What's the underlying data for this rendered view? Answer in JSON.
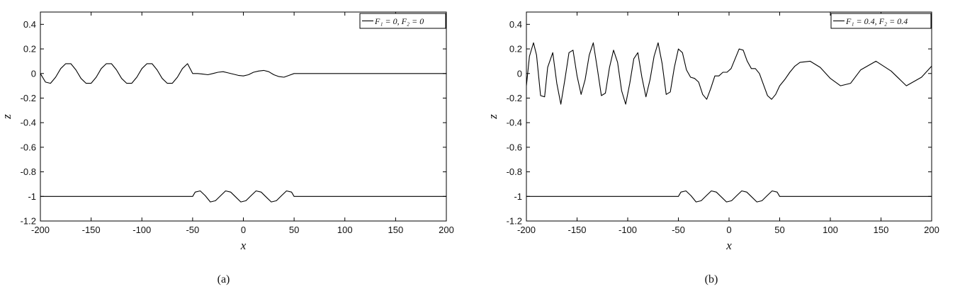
{
  "chart_data": [
    {
      "type": "line",
      "caption": "(a)",
      "xlabel": "x",
      "ylabel": "z",
      "xlim": [
        -200,
        200
      ],
      "ylim": [
        -1.2,
        0.5
      ],
      "xticks": [
        -200,
        -150,
        -100,
        -50,
        0,
        50,
        100,
        150,
        200
      ],
      "yticks": [
        -1.2,
        -1,
        -0.8,
        -0.6,
        -0.4,
        -0.2,
        0,
        0.2,
        0.4
      ],
      "grid": false,
      "legend": {
        "position": "top-right",
        "label": "F₁ = 0, F₂ = 0"
      },
      "series": [
        {
          "role": "free-surface",
          "x": [
            -200,
            -195,
            -190,
            -185,
            -180,
            -175,
            -170,
            -165,
            -160,
            -155,
            -150,
            -145,
            -140,
            -135,
            -130,
            -125,
            -120,
            -115,
            -110,
            -105,
            -100,
            -95,
            -90,
            -85,
            -80,
            -75,
            -70,
            -65,
            -60,
            -55,
            -50,
            -45,
            -40,
            -35,
            -30,
            -25,
            -20,
            -15,
            -10,
            -5,
            0,
            5,
            10,
            15,
            20,
            25,
            30,
            35,
            40,
            45,
            50,
            55,
            100,
            150,
            200
          ],
          "y": [
            0,
            -0.07,
            -0.08,
            -0.03,
            0.04,
            0.08,
            0.08,
            0.03,
            -0.04,
            -0.08,
            -0.08,
            -0.03,
            0.04,
            0.08,
            0.08,
            0.03,
            -0.04,
            -0.08,
            -0.08,
            -0.03,
            0.04,
            0.08,
            0.08,
            0.03,
            -0.04,
            -0.08,
            -0.08,
            -0.03,
            0.04,
            0.08,
            0,
            0,
            -0.005,
            -0.01,
            0,
            0.01,
            0.015,
            0.005,
            -0.005,
            -0.015,
            -0.02,
            -0.01,
            0.01,
            0.02,
            0.025,
            0.015,
            -0.01,
            -0.025,
            -0.03,
            -0.015,
            0,
            0,
            0,
            0,
            0
          ]
        },
        {
          "role": "bottom-topography",
          "x": [
            -200,
            -50,
            -47.5,
            -42.5,
            -37.5,
            -32.5,
            -27.5,
            -22.5,
            -17.5,
            -12.5,
            -7.5,
            -2.5,
            2.5,
            7.5,
            12.5,
            17.5,
            22.5,
            27.5,
            32.5,
            37.5,
            42.5,
            47.5,
            50,
            200
          ],
          "y": [
            -1,
            -1,
            -0.965,
            -0.955,
            -0.995,
            -1.045,
            -1.035,
            -0.995,
            -0.955,
            -0.965,
            -1.005,
            -1.045,
            -1.035,
            -0.995,
            -0.955,
            -0.965,
            -1.005,
            -1.045,
            -1.035,
            -0.995,
            -0.955,
            -0.965,
            -1,
            -1
          ]
        }
      ]
    },
    {
      "type": "line",
      "caption": "(b)",
      "xlabel": "x",
      "ylabel": "z",
      "xlim": [
        -200,
        200
      ],
      "ylim": [
        -1.2,
        0.5
      ],
      "xticks": [
        -200,
        -150,
        -100,
        -50,
        0,
        50,
        100,
        150,
        200
      ],
      "yticks": [
        -1.2,
        -1,
        -0.8,
        -0.6,
        -0.4,
        -0.2,
        0,
        0.2,
        0.4
      ],
      "grid": false,
      "legend": {
        "position": "top-right",
        "label": "F₁ = 0.4, F₂ = 0.4"
      },
      "series": [
        {
          "role": "free-surface",
          "x": [
            -200,
            -197,
            -193,
            -190,
            -186,
            -182,
            -179,
            -174,
            -170,
            -166,
            -162,
            -158,
            -154,
            -150,
            -146,
            -142,
            -138,
            -134,
            -130,
            -126,
            -122,
            -118,
            -114,
            -110,
            -106,
            -102,
            -98,
            -94,
            -90,
            -86,
            -82,
            -78,
            -74,
            -70,
            -66,
            -62,
            -58,
            -54,
            -50,
            -46,
            -42,
            -38,
            -34,
            -30,
            -26,
            -22,
            -18,
            -14,
            -10,
            -6,
            -2,
            2,
            6,
            10,
            14,
            18,
            22,
            26,
            30,
            34,
            38,
            42,
            46,
            50,
            55,
            60,
            65,
            70,
            80,
            90,
            100,
            110,
            120,
            130,
            145,
            160,
            175,
            190,
            200
          ],
          "y": [
            -0.1,
            0.14,
            0.25,
            0.15,
            -0.18,
            -0.19,
            0.05,
            0.17,
            -0.08,
            -0.25,
            -0.05,
            0.17,
            0.19,
            -0.02,
            -0.17,
            -0.05,
            0.15,
            0.25,
            0.04,
            -0.18,
            -0.16,
            0.05,
            0.19,
            0.09,
            -0.14,
            -0.25,
            -0.08,
            0.12,
            0.17,
            -0.03,
            -0.19,
            -0.05,
            0.14,
            0.25,
            0.08,
            -0.17,
            -0.15,
            0.05,
            0.2,
            0.17,
            0.03,
            -0.03,
            -0.04,
            -0.07,
            -0.17,
            -0.21,
            -0.12,
            -0.02,
            -0.02,
            0.01,
            0.01,
            0.04,
            0.12,
            0.2,
            0.19,
            0.1,
            0.04,
            0.04,
            0,
            -0.09,
            -0.18,
            -0.21,
            -0.17,
            -0.1,
            -0.05,
            0.01,
            0.06,
            0.09,
            0.1,
            0.05,
            -0.04,
            -0.1,
            -0.08,
            0.03,
            0.1,
            0.02,
            -0.1,
            -0.03,
            0.06
          ]
        },
        {
          "role": "bottom-topography",
          "x": [
            -200,
            -50,
            -47.5,
            -42.5,
            -37.5,
            -32.5,
            -27.5,
            -22.5,
            -17.5,
            -12.5,
            -7.5,
            -2.5,
            2.5,
            7.5,
            12.5,
            17.5,
            22.5,
            27.5,
            32.5,
            37.5,
            42.5,
            47.5,
            50,
            200
          ],
          "y": [
            -1,
            -1,
            -0.965,
            -0.955,
            -0.995,
            -1.045,
            -1.035,
            -0.995,
            -0.955,
            -0.965,
            -1.005,
            -1.045,
            -1.035,
            -0.995,
            -0.955,
            -0.965,
            -1.005,
            -1.045,
            -1.035,
            -0.995,
            -0.955,
            -0.965,
            -1,
            -1
          ]
        }
      ]
    }
  ]
}
